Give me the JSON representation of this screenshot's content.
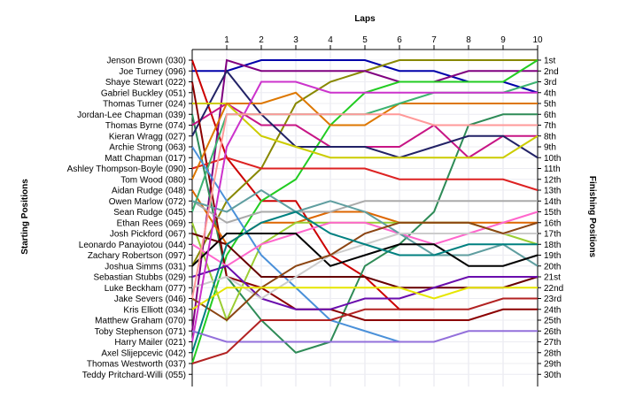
{
  "chart_data": {
    "type": "line",
    "title": "",
    "xlabel": "Laps",
    "ylabel_left": "Starting Positions",
    "ylabel_right": "Finishing Positions",
    "x_ticks": [
      1,
      2,
      3,
      4,
      5,
      6,
      7,
      8,
      9,
      10
    ],
    "xlim": [
      0,
      10
    ],
    "ylim": [
      1,
      30
    ],
    "y_inverted": true,
    "grid": true,
    "drivers": [
      "Jenson Brown (030)",
      "Joe Turney (096)",
      "Shaye Stewart (022)",
      "Gabriel Buckley (051)",
      "Thomas Turner (024)",
      "Jordan-Lee Chapman (039)",
      "Thomas Byrne (074)",
      "Kieran Wragg (027)",
      "Archie Strong (063)",
      "Matt Chapman (017)",
      "Ashley Thompson-Boyle (090)",
      "Tom Wood (080)",
      "Aidan Rudge (048)",
      "Owen Marlow (072)",
      "Sean Rudge (045)",
      "Ethan Rees (069)",
      "Josh Pickford (067)",
      "Leonardo Panayiotou (044)",
      "Zachary Robertson (097)",
      "Joshua Simms (031)",
      "Sebastian Stubbs (029)",
      "Luke Beckham (077)",
      "Jake Severs (046)",
      "Kris Elliott (034)",
      "Matthew Graham (070)",
      "Toby Stephenson (071)",
      "Harry Mailer (021)",
      "Axel Slijepcevic (042)",
      "Thomas Westworth (037)",
      "Teddy Pritchard-Willi (055)"
    ],
    "finishing_labels": [
      "1st",
      "2nd",
      "3rd",
      "4th",
      "5th",
      "6th",
      "7th",
      "8th",
      "9th",
      "10th",
      "11th",
      "12th",
      "13th",
      "14th",
      "15th",
      "16th",
      "17th",
      "18th",
      "19th",
      "20th",
      "21st",
      "22nd",
      "23rd",
      "24th",
      "25th",
      "26th",
      "27th",
      "28th",
      "29th",
      "30th"
    ],
    "series": [
      {
        "color": "#0000aa",
        "values": [
          2,
          2,
          1,
          1,
          1,
          1,
          2,
          2,
          3,
          3,
          4
        ]
      },
      {
        "color": "#cc0000",
        "values": [
          1,
          10,
          14,
          14,
          19,
          21,
          24,
          24
        ]
      },
      {
        "color": "#888800",
        "values": [
          20,
          14,
          11,
          5,
          3,
          2,
          1,
          1,
          1,
          1,
          1
        ]
      },
      {
        "color": "#800080",
        "values": [
          26,
          1,
          2,
          2,
          2,
          2,
          3,
          3,
          2,
          2,
          2
        ]
      },
      {
        "color": "#22cc22",
        "values": [
          29,
          19,
          14,
          12,
          7,
          4,
          3,
          3,
          3,
          3,
          1
        ]
      },
      {
        "color": "#2e8b57",
        "values": [
          6,
          21,
          25,
          28,
          27,
          20,
          18,
          15,
          7,
          6,
          6
        ]
      },
      {
        "color": "#c71585",
        "values": [
          7,
          5,
          7,
          7,
          9,
          9,
          9,
          7,
          10,
          8,
          8
        ]
      },
      {
        "color": "#222266",
        "values": [
          8,
          2,
          6,
          9,
          9,
          9,
          10,
          9,
          8,
          8,
          10
        ]
      },
      {
        "color": "#cccc00",
        "values": [
          5,
          5,
          8,
          9,
          10,
          10,
          10,
          10,
          10,
          10,
          8
        ]
      },
      {
        "color": "#8b0000",
        "values": [
          3,
          21,
          22,
          24,
          24,
          25,
          25,
          25,
          25,
          24,
          24
        ]
      },
      {
        "color": "#dd2222",
        "values": [
          11,
          10,
          11,
          11,
          11,
          11,
          12,
          12,
          12,
          12,
          13
        ]
      },
      {
        "color": "#dd7700",
        "values": [
          12,
          5,
          5,
          4,
          7,
          7,
          5,
          5,
          5,
          5,
          5
        ]
      },
      {
        "color": "#dd6600",
        "values": [
          13,
          18,
          16,
          16,
          15,
          15,
          16,
          16,
          16,
          16,
          16
        ]
      },
      {
        "color": "#aaaaaa",
        "values": [
          14,
          16,
          15,
          15,
          15,
          14,
          14,
          14,
          14,
          14,
          14
        ]
      },
      {
        "color": "#3cb371",
        "values": [
          15,
          6,
          6,
          6,
          6,
          6,
          5,
          4,
          4,
          4,
          3
        ]
      },
      {
        "color": "#9acd32",
        "values": [
          16,
          25,
          18,
          16,
          16,
          16,
          16,
          16,
          16,
          17,
          18
        ]
      },
      {
        "color": "#4a90d9",
        "values": [
          9,
          14,
          19,
          22,
          25,
          26,
          27,
          27
        ]
      },
      {
        "color": "#ff66cc",
        "values": [
          18,
          20,
          18,
          17,
          16,
          16,
          17,
          18,
          17,
          16,
          15
        ]
      },
      {
        "color": "#5f9ea0",
        "values": [
          14,
          15,
          13,
          15,
          14,
          15,
          17,
          19,
          19,
          18,
          20
        ]
      },
      {
        "color": "#000000",
        "values": [
          20,
          17,
          17,
          17,
          20,
          19,
          18,
          18,
          20,
          20,
          19
        ]
      },
      {
        "color": "#660000",
        "values": [
          17,
          18,
          21,
          21,
          21,
          21,
          22,
          22,
          22,
          22,
          21
        ]
      },
      {
        "color": "#6a0dad",
        "values": [
          21,
          20,
          23,
          24,
          24,
          23,
          23,
          22,
          21,
          21,
          21
        ]
      },
      {
        "color": "#cccccc",
        "values": [
          22,
          21,
          23,
          21,
          19,
          18,
          17,
          17,
          17,
          17,
          17
        ]
      },
      {
        "color": "#8b4513",
        "values": [
          23,
          25,
          22,
          20,
          19,
          17,
          16,
          16,
          16,
          17,
          16
        ]
      },
      {
        "color": "#e6e600",
        "values": [
          24,
          22,
          22,
          22,
          22,
          22,
          22,
          23,
          22,
          22,
          22
        ]
      },
      {
        "color": "#cc33cc",
        "values": [
          27,
          9,
          3,
          3,
          4,
          4,
          4,
          4,
          4,
          4,
          4
        ]
      },
      {
        "color": "#ff9999",
        "values": [
          23,
          6,
          6,
          6,
          6,
          6,
          6,
          7,
          7,
          7,
          7
        ]
      },
      {
        "color": "#9370db",
        "values": [
          26,
          27,
          27,
          27,
          27,
          27,
          27,
          27,
          26,
          26,
          26
        ]
      },
      {
        "color": "#008080",
        "values": [
          28,
          18,
          16,
          15,
          17,
          18,
          19,
          19,
          18,
          18,
          18
        ]
      },
      {
        "color": "#b22222",
        "values": [
          29,
          28,
          25,
          25,
          25,
          24,
          24,
          24,
          24,
          23,
          23
        ]
      }
    ]
  }
}
